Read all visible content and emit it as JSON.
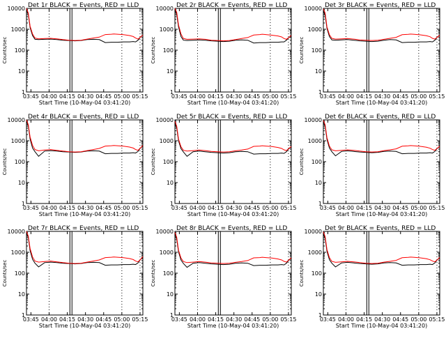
{
  "figure": {
    "xlabel": "Start Time (10-May-04 03:41:20)",
    "ylabel": "Counts/sec",
    "colors": {
      "events": "#000000",
      "lld": "#ff0000",
      "background": "#ffffff",
      "axis": "#000000"
    },
    "ytick_labels": [
      "1",
      "10",
      "100",
      "1000",
      "10000"
    ],
    "xtick_labels": [
      "03:45",
      "04:00",
      "04:15",
      "04:30",
      "04:45",
      "05:00",
      "05:15"
    ]
  },
  "chart_data": [
    {
      "type": "line",
      "title": "Det 1r BLACK = Events, RED = LLD",
      "xlabel": "Start Time (10-May-04 03:41:20)",
      "ylabel": "Counts/sec",
      "yscale": "log",
      "ylim": [
        1,
        10000
      ],
      "xlim_minutes": [
        0,
        96
      ],
      "x_minutes": [
        0,
        1.5,
        3,
        5,
        7,
        10,
        15,
        20,
        25,
        30,
        35,
        40,
        45,
        50,
        55,
        60,
        65,
        70,
        72,
        75,
        80,
        85,
        88,
        90,
        92,
        94,
        96
      ],
      "series": [
        {
          "name": "Events",
          "color": "#000000",
          "values": [
            9000,
            5000,
            1200,
            500,
            330,
            320,
            330,
            340,
            320,
            300,
            290,
            280,
            290,
            320,
            330,
            320,
            230,
            240,
            240,
            240,
            250,
            250,
            260,
            250,
            300,
            420,
            500
          ]
        },
        {
          "name": "LLD",
          "color": "#ff0000",
          "values": [
            10000,
            6000,
            1400,
            600,
            380,
            350,
            360,
            370,
            350,
            320,
            300,
            290,
            300,
            340,
            380,
            420,
            560,
            580,
            600,
            580,
            550,
            500,
            450,
            380,
            340,
            420,
            520
          ]
        }
      ],
      "vertical_dashed_lines_time": [
        "04:00",
        "05:00",
        "05:15"
      ],
      "gap_markers_time": [
        "04:18"
      ]
    },
    {
      "type": "line",
      "title": "Det 2r BLACK = Events, RED = LLD",
      "xlabel": "Start Time (10-May-04 03:41:20)",
      "ylabel": "Counts/sec",
      "yscale": "log",
      "ylim": [
        1,
        10000
      ],
      "xlim_minutes": [
        0,
        96
      ],
      "x_minutes": [
        0,
        1.5,
        3,
        5,
        7,
        10,
        15,
        20,
        25,
        30,
        35,
        40,
        45,
        50,
        55,
        60,
        65,
        70,
        72,
        75,
        80,
        85,
        88,
        90,
        92,
        94,
        96
      ],
      "series": [
        {
          "name": "Events",
          "color": "#000000",
          "values": [
            9000,
            5000,
            1300,
            450,
            300,
            290,
            300,
            310,
            300,
            280,
            270,
            260,
            270,
            300,
            310,
            300,
            220,
            230,
            230,
            230,
            240,
            240,
            250,
            250,
            300,
            400,
            480
          ]
        },
        {
          "name": "LLD",
          "color": "#ff0000",
          "values": [
            10000,
            6500,
            1600,
            600,
            360,
            330,
            340,
            350,
            330,
            300,
            290,
            280,
            290,
            320,
            360,
            400,
            530,
            560,
            580,
            560,
            520,
            480,
            430,
            360,
            330,
            410,
            500
          ]
        }
      ],
      "vertical_dashed_lines_time": [
        "04:00",
        "05:00",
        "05:15"
      ],
      "gap_markers_time": [
        "04:18"
      ]
    },
    {
      "type": "line",
      "title": "Det 3r BLACK = Events, RED = LLD",
      "xlabel": "Start Time (10-May-04 03:41:20)",
      "ylabel": "Counts/sec",
      "yscale": "log",
      "ylim": [
        1,
        10000
      ],
      "xlim_minutes": [
        0,
        96
      ],
      "x_minutes": [
        0,
        1.5,
        3,
        5,
        7,
        10,
        15,
        20,
        25,
        30,
        35,
        40,
        45,
        50,
        55,
        60,
        65,
        70,
        72,
        75,
        80,
        85,
        88,
        90,
        92,
        94,
        96
      ],
      "series": [
        {
          "name": "Events",
          "color": "#000000",
          "values": [
            8000,
            4500,
            1100,
            450,
            310,
            300,
            310,
            320,
            300,
            280,
            270,
            260,
            270,
            300,
            320,
            310,
            230,
            240,
            240,
            240,
            250,
            250,
            260,
            250,
            300,
            420,
            500
          ]
        },
        {
          "name": "LLD",
          "color": "#ff0000",
          "values": [
            9500,
            6000,
            1300,
            550,
            370,
            340,
            350,
            360,
            340,
            310,
            300,
            290,
            300,
            330,
            370,
            410,
            550,
            570,
            590,
            570,
            540,
            490,
            440,
            370,
            340,
            420,
            520
          ]
        }
      ],
      "vertical_dashed_lines_time": [
        "04:00",
        "05:00",
        "05:15"
      ],
      "gap_markers_time": [
        "04:18"
      ]
    },
    {
      "type": "line",
      "title": "Det 4r BLACK = Events, RED = LLD",
      "xlabel": "Start Time (10-May-04 03:41:20)",
      "ylabel": "Counts/sec",
      "yscale": "log",
      "ylim": [
        1,
        10000
      ],
      "xlim_minutes": [
        0,
        96
      ],
      "x_minutes": [
        0,
        1.5,
        3,
        5,
        7,
        10,
        15,
        20,
        25,
        30,
        35,
        40,
        45,
        50,
        55,
        60,
        65,
        70,
        72,
        75,
        80,
        85,
        88,
        90,
        92,
        94,
        96
      ],
      "series": [
        {
          "name": "Events",
          "color": "#000000",
          "values": [
            9000,
            5000,
            1200,
            450,
            300,
            180,
            320,
            340,
            320,
            300,
            290,
            280,
            290,
            320,
            330,
            320,
            240,
            250,
            250,
            250,
            260,
            260,
            270,
            260,
            310,
            450,
            550
          ]
        },
        {
          "name": "LLD",
          "color": "#ff0000",
          "values": [
            10000,
            6000,
            1500,
            600,
            380,
            330,
            360,
            380,
            350,
            320,
            300,
            290,
            300,
            340,
            380,
            430,
            560,
            580,
            600,
            580,
            550,
            500,
            450,
            380,
            350,
            450,
            600
          ]
        }
      ],
      "vertical_dashed_lines_time": [
        "04:00",
        "05:00",
        "05:15"
      ],
      "gap_markers_time": [
        "04:18"
      ]
    },
    {
      "type": "line",
      "title": "Det 5r BLACK = Events, RED = LLD",
      "xlabel": "Start Time (10-May-04 03:41:20)",
      "ylabel": "Counts/sec",
      "yscale": "log",
      "ylim": [
        1,
        10000
      ],
      "xlim_minutes": [
        0,
        96
      ],
      "x_minutes": [
        0,
        1.5,
        3,
        5,
        7,
        10,
        15,
        20,
        25,
        30,
        35,
        40,
        45,
        50,
        55,
        60,
        65,
        70,
        72,
        75,
        80,
        85,
        88,
        90,
        92,
        94,
        96
      ],
      "series": [
        {
          "name": "Events",
          "color": "#000000",
          "values": [
            7000,
            4000,
            1000,
            420,
            290,
            180,
            300,
            320,
            300,
            280,
            270,
            260,
            270,
            300,
            310,
            300,
            230,
            240,
            240,
            240,
            250,
            250,
            260,
            250,
            300,
            420,
            500
          ]
        },
        {
          "name": "LLD",
          "color": "#ff0000",
          "values": [
            8500,
            5000,
            1200,
            520,
            350,
            320,
            340,
            360,
            340,
            310,
            300,
            290,
            300,
            330,
            360,
            400,
            540,
            560,
            580,
            560,
            530,
            480,
            430,
            370,
            340,
            430,
            530
          ]
        }
      ],
      "vertical_dashed_lines_time": [
        "04:00",
        "05:00",
        "05:15"
      ],
      "gap_markers_time": [
        "04:18"
      ]
    },
    {
      "type": "line",
      "title": "Det 6r BLACK = Events, RED = LLD",
      "xlabel": "Start Time (10-May-04 03:41:20)",
      "ylabel": "Counts/sec",
      "yscale": "log",
      "ylim": [
        1,
        10000
      ],
      "xlim_minutes": [
        0,
        96
      ],
      "x_minutes": [
        0,
        1.5,
        3,
        5,
        7,
        10,
        15,
        20,
        25,
        30,
        35,
        40,
        45,
        50,
        55,
        60,
        65,
        70,
        72,
        75,
        80,
        85,
        88,
        90,
        92,
        94,
        96
      ],
      "series": [
        {
          "name": "Events",
          "color": "#000000",
          "values": [
            8500,
            4800,
            1150,
            450,
            300,
            190,
            310,
            330,
            310,
            290,
            280,
            270,
            280,
            310,
            320,
            310,
            240,
            250,
            250,
            250,
            260,
            260,
            270,
            260,
            310,
            440,
            520
          ]
        },
        {
          "name": "LLD",
          "color": "#ff0000",
          "values": [
            9500,
            5800,
            1400,
            560,
            370,
            330,
            350,
            370,
            350,
            320,
            300,
            290,
            300,
            340,
            370,
            410,
            550,
            570,
            590,
            570,
            540,
            490,
            440,
            380,
            350,
            440,
            560
          ]
        }
      ],
      "vertical_dashed_lines_time": [
        "04:00",
        "05:00",
        "05:15"
      ],
      "gap_markers_time": [
        "04:18"
      ]
    },
    {
      "type": "line",
      "title": "Det 7r BLACK = Events, RED = LLD",
      "xlabel": "Start Time (10-May-04 03:41:20)",
      "ylabel": "Counts/sec",
      "yscale": "log",
      "ylim": [
        1,
        10000
      ],
      "xlim_minutes": [
        0,
        96
      ],
      "x_minutes": [
        0,
        1.5,
        3,
        5,
        7,
        10,
        15,
        20,
        25,
        30,
        35,
        40,
        45,
        50,
        55,
        60,
        65,
        70,
        72,
        75,
        80,
        85,
        88,
        90,
        92,
        94,
        96
      ],
      "series": [
        {
          "name": "Events",
          "color": "#000000",
          "values": [
            9000,
            5000,
            1200,
            460,
            300,
            200,
            320,
            340,
            320,
            300,
            290,
            280,
            290,
            320,
            330,
            320,
            240,
            250,
            250,
            250,
            260,
            260,
            270,
            260,
            310,
            450,
            560
          ]
        },
        {
          "name": "LLD",
          "color": "#ff0000",
          "values": [
            10000,
            6000,
            1500,
            600,
            380,
            340,
            360,
            380,
            350,
            320,
            300,
            290,
            300,
            340,
            380,
            430,
            560,
            580,
            600,
            580,
            550,
            500,
            450,
            380,
            350,
            450,
            620
          ]
        }
      ],
      "vertical_dashed_lines_time": [
        "04:00",
        "05:00",
        "05:15"
      ],
      "gap_markers_time": [
        "04:18"
      ]
    },
    {
      "type": "line",
      "title": "Det 8r BLACK = Events, RED = LLD",
      "xlabel": "Start Time (10-May-04 03:41:20)",
      "ylabel": "Counts/sec",
      "yscale": "log",
      "ylim": [
        1,
        10000
      ],
      "xlim_minutes": [
        0,
        96
      ],
      "x_minutes": [
        0,
        1.5,
        3,
        5,
        7,
        10,
        15,
        20,
        25,
        30,
        35,
        40,
        45,
        50,
        55,
        60,
        65,
        70,
        72,
        75,
        80,
        85,
        88,
        90,
        92,
        94,
        96
      ],
      "series": [
        {
          "name": "Events",
          "color": "#000000",
          "values": [
            7500,
            4200,
            1050,
            430,
            290,
            190,
            300,
            320,
            300,
            280,
            270,
            260,
            270,
            300,
            310,
            300,
            230,
            240,
            240,
            240,
            250,
            250,
            260,
            250,
            300,
            420,
            500
          ]
        },
        {
          "name": "LLD",
          "color": "#ff0000",
          "values": [
            9000,
            5200,
            1250,
            530,
            360,
            320,
            340,
            360,
            340,
            310,
            300,
            290,
            300,
            330,
            360,
            400,
            540,
            560,
            580,
            560,
            530,
            480,
            430,
            370,
            340,
            430,
            540
          ]
        }
      ],
      "vertical_dashed_lines_time": [
        "04:00",
        "05:00",
        "05:15"
      ],
      "gap_markers_time": [
        "04:18"
      ]
    },
    {
      "type": "line",
      "title": "Det 9r BLACK = Events, RED = LLD",
      "xlabel": "Start Time (10-May-04 03:41:20)",
      "ylabel": "Counts/sec",
      "yscale": "log",
      "ylim": [
        1,
        10000
      ],
      "xlim_minutes": [
        0,
        96
      ],
      "x_minutes": [
        0,
        1.5,
        3,
        5,
        7,
        10,
        15,
        20,
        25,
        30,
        35,
        40,
        45,
        50,
        55,
        60,
        65,
        70,
        72,
        75,
        80,
        85,
        88,
        90,
        92,
        94,
        96
      ],
      "series": [
        {
          "name": "Events",
          "color": "#000000",
          "values": [
            8000,
            4500,
            1100,
            440,
            300,
            200,
            310,
            330,
            310,
            290,
            280,
            270,
            280,
            310,
            320,
            310,
            240,
            250,
            250,
            250,
            260,
            260,
            270,
            260,
            310,
            440,
            530
          ]
        },
        {
          "name": "LLD",
          "color": "#ff0000",
          "values": [
            9500,
            5600,
            1350,
            560,
            370,
            330,
            350,
            370,
            350,
            320,
            300,
            290,
            300,
            340,
            370,
            410,
            550,
            570,
            590,
            570,
            540,
            490,
            440,
            380,
            350,
            440,
            570
          ]
        }
      ],
      "vertical_dashed_lines_time": [
        "04:00",
        "05:00",
        "05:15"
      ],
      "gap_markers_time": [
        "04:18"
      ]
    }
  ]
}
